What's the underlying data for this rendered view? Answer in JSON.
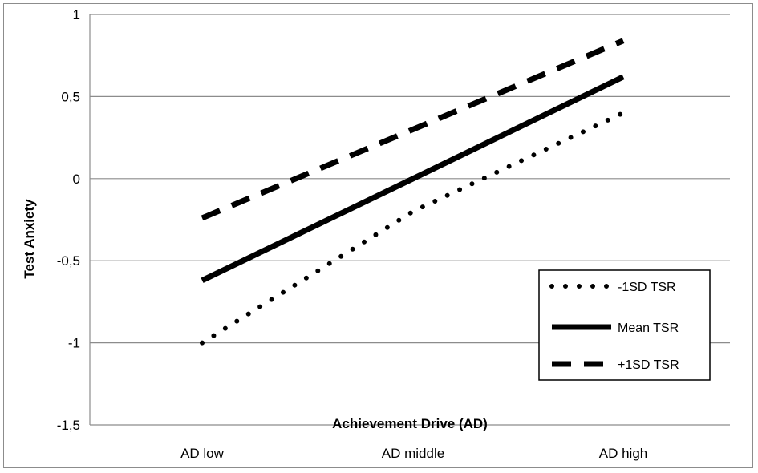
{
  "chart_data": {
    "type": "line",
    "xlabel": "Achievement Drive (AD)",
    "ylabel": "Test Anxiety",
    "categories": [
      "AD low",
      "AD middle",
      "AD high"
    ],
    "y_ticks": [
      "1",
      "0,5",
      "0",
      "-0,5",
      "-1",
      "-1,5"
    ],
    "y_tick_values": [
      1,
      0.5,
      0,
      -0.5,
      -1,
      -1.5
    ],
    "ylim": [
      -1.5,
      1
    ],
    "grid": "horizontal",
    "legend_position": "bottom-right",
    "series": [
      {
        "name": "-1SD TSR",
        "style": "dotted",
        "values": [
          -1.0,
          -0.2,
          0.4
        ]
      },
      {
        "name": "Mean TSR",
        "style": "solid",
        "values": [
          -0.62,
          0.0,
          0.62
        ]
      },
      {
        "name": "+1SD TSR",
        "style": "dashed",
        "values": [
          -0.24,
          0.3,
          0.84
        ]
      }
    ]
  }
}
